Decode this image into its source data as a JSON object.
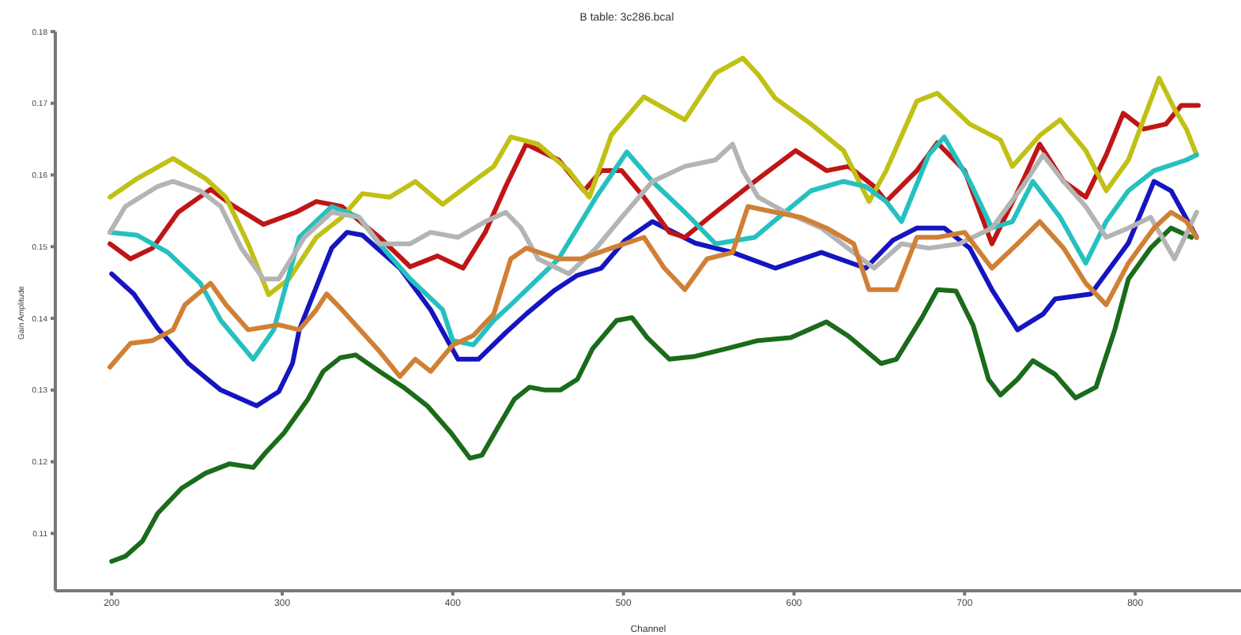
{
  "chart_data": {
    "type": "line",
    "title": "B table: 3c286.bcal",
    "xlabel": "Channel",
    "ylabel": "Gain Amplitude",
    "xlim": [
      167,
      862
    ],
    "ylim": [
      0.102,
      0.18
    ],
    "xticks": [
      200,
      300,
      400,
      500,
      600,
      700,
      800
    ],
    "yticks": [
      0.11,
      0.12,
      0.13,
      0.14,
      0.15,
      0.16,
      0.17,
      0.18
    ],
    "series": [
      {
        "color": "#1a6b1a",
        "x": [
          200,
          208,
          218,
          227,
          241,
          255,
          269,
          283,
          290,
          301,
          315,
          324,
          334,
          343,
          357,
          371,
          385,
          399,
          410,
          417,
          426,
          436,
          445,
          454,
          463,
          473,
          482,
          496,
          505,
          514,
          527,
          542,
          561,
          579,
          598,
          619,
          632,
          651,
          660,
          675,
          684,
          695,
          705,
          714,
          721,
          731,
          740,
          753,
          765,
          777,
          788,
          796,
          809,
          821,
          833
        ],
        "values": [
          0.1061,
          0.1068,
          0.1089,
          0.1128,
          0.1163,
          0.1184,
          0.1197,
          0.1192,
          0.1212,
          0.124,
          0.1287,
          0.1326,
          0.1345,
          0.1349,
          0.1326,
          0.1304,
          0.1278,
          0.124,
          0.1205,
          0.1209,
          0.1246,
          0.1287,
          0.1304,
          0.13,
          0.13,
          0.1315,
          0.1358,
          0.1397,
          0.1401,
          0.1373,
          0.1343,
          0.1347,
          0.1358,
          0.1369,
          0.1373,
          0.1395,
          0.1375,
          0.1337,
          0.1343,
          0.1401,
          0.144,
          0.1438,
          0.139,
          0.1315,
          0.1293,
          0.1315,
          0.1341,
          0.1322,
          0.1289,
          0.1304,
          0.1384,
          0.1455,
          0.1498,
          0.1526,
          0.1513
        ]
      },
      {
        "color": "#1515c0",
        "x": [
          200,
          213,
          227,
          245,
          264,
          285,
          298,
          306,
          310,
          320,
          329,
          338,
          347,
          369,
          387,
          403,
          415,
          431,
          443,
          459,
          473,
          487,
          501,
          517,
          542,
          564,
          589,
          616,
          642,
          658,
          672,
          688,
          703,
          716,
          731,
          746,
          753,
          774,
          796,
          811,
          821,
          836
        ],
        "values": [
          0.1462,
          0.1434,
          0.1386,
          0.1337,
          0.13,
          0.1278,
          0.1298,
          0.1337,
          0.1384,
          0.1444,
          0.1498,
          0.152,
          0.1516,
          0.147,
          0.1412,
          0.1343,
          0.1343,
          0.138,
          0.1406,
          0.1438,
          0.146,
          0.147,
          0.1509,
          0.1535,
          0.1505,
          0.1492,
          0.147,
          0.1492,
          0.147,
          0.1509,
          0.1526,
          0.1526,
          0.1498,
          0.144,
          0.1384,
          0.1406,
          0.1427,
          0.1434,
          0.1505,
          0.1591,
          0.1578,
          0.1513
        ]
      },
      {
        "color": "#c01515",
        "x": [
          199,
          211,
          224,
          239,
          258,
          270,
          289,
          308,
          320,
          335,
          357,
          375,
          391,
          406,
          419,
          431,
          443,
          462,
          477,
          487,
          499,
          512,
          527,
          536,
          554,
          577,
          601,
          619,
          632,
          647,
          654,
          672,
          684,
          700,
          716,
          734,
          744,
          758,
          771,
          783,
          793,
          805,
          818,
          827,
          837
        ],
        "values": [
          0.1504,
          0.1483,
          0.1498,
          0.1548,
          0.158,
          0.1559,
          0.1531,
          0.1548,
          0.1563,
          0.1556,
          0.1513,
          0.1472,
          0.1487,
          0.147,
          0.152,
          0.1584,
          0.1643,
          0.1621,
          0.1578,
          0.1606,
          0.1606,
          0.1569,
          0.152,
          0.1513,
          0.1548,
          0.1591,
          0.1634,
          0.1606,
          0.1612,
          0.1584,
          0.1563,
          0.1606,
          0.1645,
          0.1606,
          0.1504,
          0.1591,
          0.1643,
          0.1591,
          0.1569,
          0.1628,
          0.1686,
          0.1664,
          0.1671,
          0.1697,
          0.1697
        ]
      },
      {
        "color": "#c0c015",
        "x": [
          199,
          215,
          236,
          255,
          267,
          280,
          292,
          304,
          320,
          335,
          347,
          363,
          378,
          394,
          412,
          424,
          434,
          450,
          468,
          480,
          493,
          512,
          536,
          554,
          570,
          579,
          589,
          610,
          629,
          644,
          654,
          672,
          684,
          703,
          721,
          728,
          744,
          756,
          771,
          783,
          796,
          814,
          823,
          830,
          836
        ],
        "values": [
          0.1569,
          0.1595,
          0.1623,
          0.1595,
          0.1569,
          0.1504,
          0.1433,
          0.1455,
          0.1513,
          0.1541,
          0.1574,
          0.1569,
          0.1591,
          0.1559,
          0.1591,
          0.1612,
          0.1653,
          0.1643,
          0.1606,
          0.1569,
          0.1656,
          0.1709,
          0.1677,
          0.1742,
          0.1763,
          0.174,
          0.1707,
          0.1671,
          0.1634,
          0.1563,
          0.1606,
          0.1703,
          0.1714,
          0.1671,
          0.1649,
          0.1612,
          0.1655,
          0.1677,
          0.1634,
          0.1578,
          0.1621,
          0.1735,
          0.1692,
          0.1664,
          0.1628
        ]
      },
      {
        "color": "#25c0c0",
        "x": [
          199,
          215,
          233,
          252,
          264,
          283,
          295,
          310,
          329,
          345,
          357,
          375,
          394,
          400,
          412,
          424,
          434,
          462,
          484,
          502,
          517,
          536,
          554,
          577,
          591,
          610,
          629,
          642,
          654,
          663,
          679,
          688,
          703,
          716,
          728,
          740,
          756,
          771,
          783,
          796,
          811,
          830,
          836
        ],
        "values": [
          0.152,
          0.1516,
          0.1492,
          0.1449,
          0.1397,
          0.1343,
          0.1384,
          0.1513,
          0.1556,
          0.1541,
          0.1504,
          0.1455,
          0.1412,
          0.1369,
          0.1363,
          0.1397,
          0.1419,
          0.1483,
          0.1569,
          0.1632,
          0.1591,
          0.1548,
          0.1504,
          0.1513,
          0.1541,
          0.1578,
          0.1591,
          0.1584,
          0.1563,
          0.1535,
          0.1628,
          0.1653,
          0.1591,
          0.1526,
          0.1535,
          0.1591,
          0.1541,
          0.1477,
          0.1535,
          0.1578,
          0.1606,
          0.1621,
          0.1628
        ]
      },
      {
        "color": "#b4b4b4",
        "x": [
          199,
          208,
          227,
          236,
          252,
          264,
          276,
          289,
          298,
          313,
          329,
          345,
          357,
          375,
          387,
          403,
          419,
          431,
          440,
          450,
          468,
          484,
          499,
          517,
          536,
          554,
          564,
          570,
          579,
          595,
          616,
          647,
          663,
          679,
          697,
          716,
          734,
          746,
          758,
          771,
          783,
          796,
          809,
          823,
          836
        ],
        "values": [
          0.152,
          0.1556,
          0.1584,
          0.1591,
          0.1578,
          0.1556,
          0.1498,
          0.1455,
          0.1455,
          0.1513,
          0.1548,
          0.1541,
          0.1504,
          0.1504,
          0.152,
          0.1513,
          0.1535,
          0.1548,
          0.1526,
          0.1483,
          0.1462,
          0.1498,
          0.1541,
          0.1591,
          0.1612,
          0.1621,
          0.1643,
          0.1606,
          0.1569,
          0.1548,
          0.1526,
          0.147,
          0.1504,
          0.1498,
          0.1504,
          0.1526,
          0.1584,
          0.1628,
          0.1591,
          0.1556,
          0.1513,
          0.1526,
          0.1541,
          0.1483,
          0.1548
        ]
      },
      {
        "color": "#d08035",
        "x": [
          199,
          211,
          224,
          236,
          243,
          258,
          267,
          280,
          298,
          310,
          320,
          326,
          335,
          357,
          369,
          378,
          387,
          400,
          412,
          424,
          434,
          443,
          462,
          475,
          493,
          512,
          524,
          536,
          549,
          564,
          573,
          589,
          604,
          619,
          635,
          644,
          660,
          672,
          684,
          700,
          716,
          731,
          744,
          758,
          771,
          783,
          796,
          811,
          821,
          830,
          836
        ],
        "values": [
          0.1332,
          0.1365,
          0.1369,
          0.1384,
          0.1419,
          0.1449,
          0.1419,
          0.1384,
          0.1391,
          0.1384,
          0.1412,
          0.1434,
          0.1412,
          0.1354,
          0.1319,
          0.1343,
          0.1326,
          0.1363,
          0.1376,
          0.1406,
          0.1483,
          0.1498,
          0.1483,
          0.1483,
          0.1498,
          0.1513,
          0.147,
          0.144,
          0.1483,
          0.1492,
          0.1556,
          0.1548,
          0.1541,
          0.1526,
          0.1504,
          0.144,
          0.144,
          0.1513,
          0.1513,
          0.152,
          0.147,
          0.1504,
          0.1535,
          0.1498,
          0.1449,
          0.1419,
          0.1477,
          0.1526,
          0.1548,
          0.1535,
          0.1513
        ]
      }
    ]
  }
}
